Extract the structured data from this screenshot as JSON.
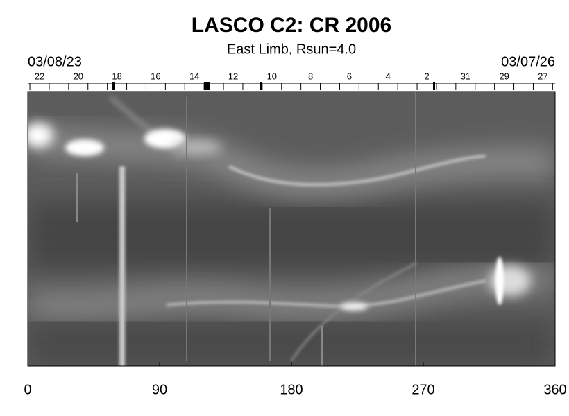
{
  "chart_data": {
    "type": "image",
    "title": "LASCO C2: CR 2006",
    "subtitle": "East Limb, Rsun=4.0",
    "xlim": [
      0,
      360
    ],
    "xticks": [
      0,
      90,
      180,
      270,
      360
    ],
    "top_axis": {
      "start_label": "03/08/23",
      "end_label": "03/07/26",
      "categories": [
        "22",
        "20",
        "18",
        "16",
        "14",
        "12",
        "10",
        "8",
        "6",
        "4",
        "2",
        "31",
        "29",
        "27"
      ]
    }
  }
}
